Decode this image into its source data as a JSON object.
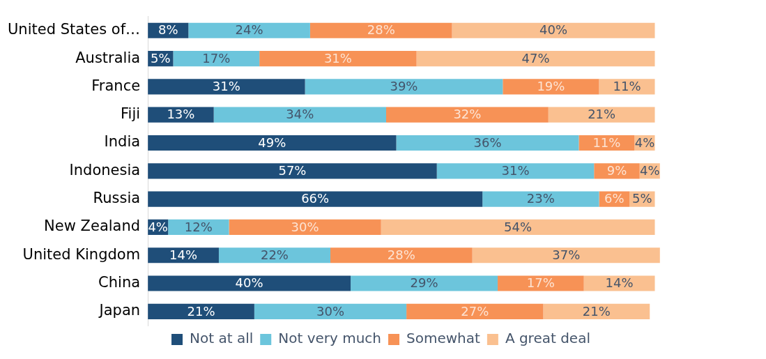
{
  "chart_data": {
    "type": "bar",
    "orientation": "horizontal",
    "stacked": true,
    "categories": [
      "United States of…",
      "Australia",
      "France",
      "Fiji",
      "India",
      "Indonesia",
      "Russia",
      "New Zealand",
      "United Kingdom",
      "China",
      "Japan"
    ],
    "series": [
      {
        "name": "Not at all",
        "color": "#1f4e79",
        "values": [
          8,
          5,
          31,
          13,
          49,
          57,
          66,
          4,
          14,
          40,
          21
        ],
        "value_labels": [
          "8%",
          "5%",
          "31%",
          "13%",
          "49%",
          "57%",
          "66%",
          "4%",
          "14%",
          "40%",
          "21%"
        ]
      },
      {
        "name": "Not very much",
        "color": "#6cc5dc",
        "values": [
          24,
          17,
          39,
          34,
          36,
          31,
          23,
          12,
          22,
          29,
          30
        ],
        "value_labels": [
          "24%",
          "17%",
          "39%",
          "34%",
          "36%",
          "31%",
          "23%",
          "12%",
          "22%",
          "29%",
          "30%"
        ]
      },
      {
        "name": "Somewhat",
        "color": "#f79256",
        "values": [
          28,
          31,
          19,
          32,
          11,
          9,
          6,
          30,
          28,
          17,
          27
        ],
        "value_labels": [
          "28%",
          "31%",
          "19%",
          "32%",
          "11%",
          "9%",
          "6%",
          "30%",
          "28%",
          "17%",
          "27%"
        ]
      },
      {
        "name": "A great deal",
        "color": "#fac090",
        "values": [
          40,
          47,
          11,
          21,
          4,
          4,
          5,
          54,
          37,
          14,
          21
        ],
        "value_labels": [
          "40%",
          "47%",
          "11%",
          "21%",
          "4%",
          "4%",
          "5%",
          "54%",
          "37%",
          "14%",
          "21%"
        ]
      }
    ],
    "legend": "bottom",
    "tick_labels": "y"
  }
}
